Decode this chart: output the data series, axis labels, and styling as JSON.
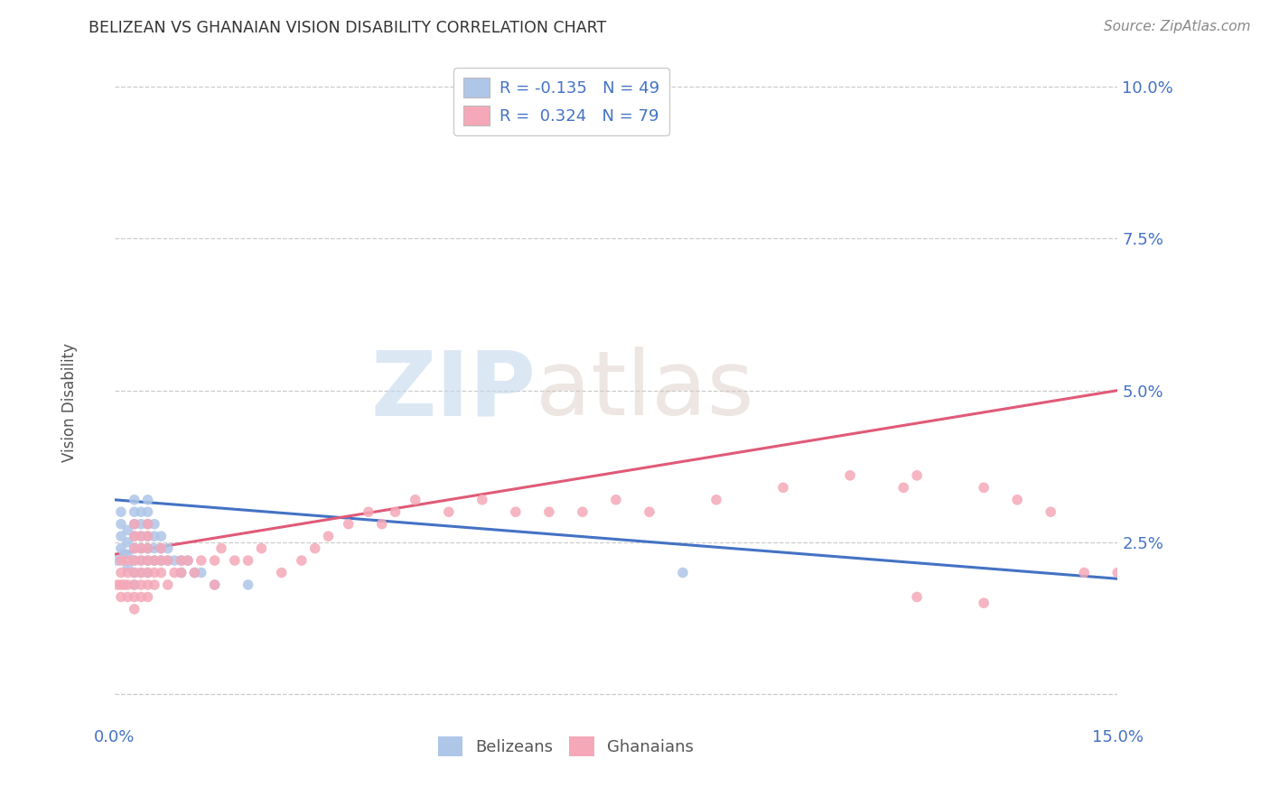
{
  "title": "BELIZEAN VS GHANAIAN VISION DISABILITY CORRELATION CHART",
  "source": "Source: ZipAtlas.com",
  "ylabel": "Vision Disability",
  "xlim": [
    0.0,
    0.15
  ],
  "ylim": [
    -0.005,
    0.105
  ],
  "xtick_positions": [
    0.0,
    0.05,
    0.1,
    0.15
  ],
  "xtick_labels": [
    "0.0%",
    "",
    "",
    "15.0%"
  ],
  "ytick_positions": [
    0.0,
    0.025,
    0.05,
    0.075,
    0.1
  ],
  "ytick_labels": [
    "",
    "2.5%",
    "5.0%",
    "7.5%",
    "10.0%"
  ],
  "legend_r_belizean": "-0.135",
  "legend_n_belizean": "49",
  "legend_r_ghanaian": "0.324",
  "legend_n_ghanaian": "79",
  "color_belizean": "#aec6e8",
  "color_ghanaian": "#f4a8b8",
  "line_color_belizean": "#4472c4",
  "line_color_ghanaian": "#e05a78",
  "watermark_zip": "ZIP",
  "watermark_atlas": "atlas",
  "belizean_x": [
    0.0005,
    0.001,
    0.001,
    0.001,
    0.001,
    0.0015,
    0.002,
    0.002,
    0.002,
    0.002,
    0.003,
    0.003,
    0.003,
    0.003,
    0.003,
    0.003,
    0.003,
    0.003,
    0.004,
    0.004,
    0.004,
    0.004,
    0.004,
    0.004,
    0.005,
    0.005,
    0.005,
    0.005,
    0.005,
    0.005,
    0.005,
    0.006,
    0.006,
    0.006,
    0.006,
    0.007,
    0.007,
    0.007,
    0.008,
    0.008,
    0.009,
    0.01,
    0.01,
    0.011,
    0.012,
    0.013,
    0.015,
    0.02,
    0.085
  ],
  "belizean_y": [
    0.022,
    0.024,
    0.026,
    0.028,
    0.03,
    0.023,
    0.021,
    0.023,
    0.025,
    0.027,
    0.018,
    0.02,
    0.022,
    0.024,
    0.026,
    0.028,
    0.03,
    0.032,
    0.02,
    0.022,
    0.024,
    0.026,
    0.028,
    0.03,
    0.02,
    0.022,
    0.024,
    0.026,
    0.028,
    0.03,
    0.032,
    0.022,
    0.024,
    0.026,
    0.028,
    0.022,
    0.024,
    0.026,
    0.022,
    0.024,
    0.022,
    0.02,
    0.022,
    0.022,
    0.02,
    0.02,
    0.018,
    0.018,
    0.02
  ],
  "ghanaian_x": [
    0.0005,
    0.001,
    0.001,
    0.001,
    0.001,
    0.0015,
    0.002,
    0.002,
    0.002,
    0.002,
    0.003,
    0.003,
    0.003,
    0.003,
    0.003,
    0.003,
    0.003,
    0.003,
    0.004,
    0.004,
    0.004,
    0.004,
    0.004,
    0.004,
    0.005,
    0.005,
    0.005,
    0.005,
    0.005,
    0.005,
    0.005,
    0.006,
    0.006,
    0.006,
    0.007,
    0.007,
    0.007,
    0.008,
    0.008,
    0.009,
    0.01,
    0.01,
    0.011,
    0.012,
    0.013,
    0.015,
    0.015,
    0.016,
    0.018,
    0.02,
    0.022,
    0.025,
    0.028,
    0.03,
    0.032,
    0.035,
    0.038,
    0.04,
    0.042,
    0.045,
    0.05,
    0.055,
    0.06,
    0.065,
    0.07,
    0.075,
    0.08,
    0.09,
    0.1,
    0.11,
    0.118,
    0.12,
    0.13,
    0.135,
    0.14,
    0.145,
    0.15,
    0.12,
    0.13
  ],
  "ghanaian_y": [
    0.018,
    0.016,
    0.018,
    0.02,
    0.022,
    0.018,
    0.016,
    0.018,
    0.02,
    0.022,
    0.014,
    0.016,
    0.018,
    0.02,
    0.022,
    0.024,
    0.026,
    0.028,
    0.016,
    0.018,
    0.02,
    0.022,
    0.024,
    0.026,
    0.016,
    0.018,
    0.02,
    0.022,
    0.024,
    0.026,
    0.028,
    0.018,
    0.02,
    0.022,
    0.02,
    0.022,
    0.024,
    0.018,
    0.022,
    0.02,
    0.02,
    0.022,
    0.022,
    0.02,
    0.022,
    0.018,
    0.022,
    0.024,
    0.022,
    0.022,
    0.024,
    0.02,
    0.022,
    0.024,
    0.026,
    0.028,
    0.03,
    0.028,
    0.03,
    0.032,
    0.03,
    0.032,
    0.03,
    0.03,
    0.03,
    0.032,
    0.03,
    0.032,
    0.034,
    0.036,
    0.034,
    0.036,
    0.034,
    0.032,
    0.03,
    0.02,
    0.02,
    0.016,
    0.015
  ]
}
